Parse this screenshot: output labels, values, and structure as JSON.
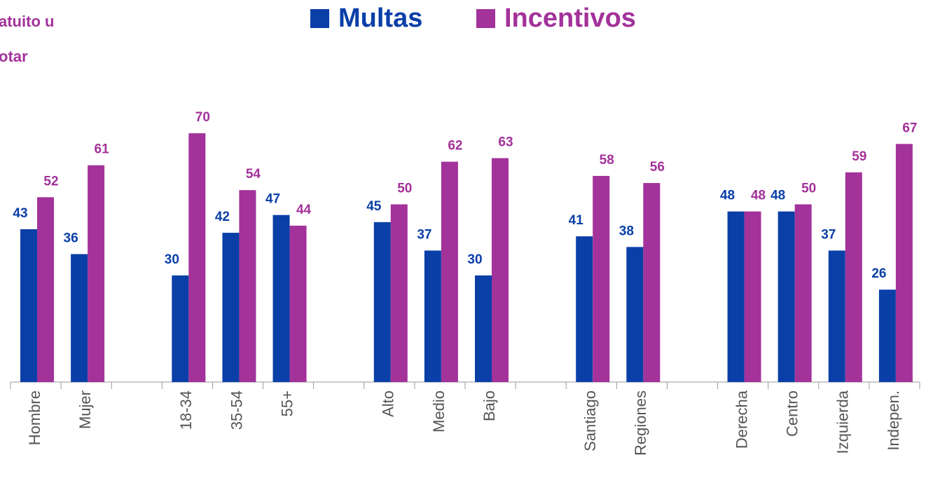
{
  "chart_data": {
    "type": "bar",
    "annotations": [
      "atuito u",
      "otar"
    ],
    "categories": [
      "Hombre",
      "Mujer",
      null,
      "18-34",
      "35-54",
      "55+",
      null,
      "Alto",
      "Medio",
      "Bajo",
      null,
      "Santiago",
      "Regiones",
      null,
      "Derecha",
      "Centro",
      "Izquierda",
      "Indepen."
    ],
    "series": [
      {
        "name": "Multas",
        "color": "#0a3fa8",
        "values": [
          43,
          36,
          null,
          30,
          42,
          47,
          null,
          45,
          37,
          30,
          null,
          41,
          38,
          null,
          48,
          48,
          37,
          26
        ]
      },
      {
        "name": "Incentivos",
        "color": "#a3329a",
        "values": [
          52,
          61,
          null,
          70,
          54,
          44,
          null,
          50,
          62,
          63,
          null,
          58,
          56,
          null,
          48,
          50,
          59,
          67
        ]
      }
    ],
    "legend": "top"
  }
}
